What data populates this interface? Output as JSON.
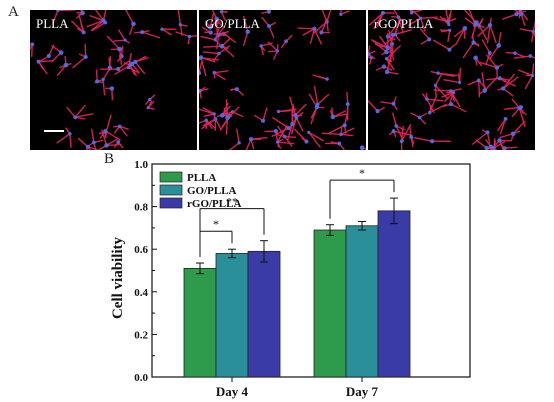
{
  "panel_a": {
    "letter": "A",
    "images": [
      {
        "label": "PLLA",
        "density": 0.55
      },
      {
        "label": "GO/PLLA",
        "density": 0.75
      },
      {
        "label": "rGO/PLLA",
        "density": 0.95
      }
    ]
  },
  "panel_b": {
    "letter": "B"
  },
  "colors": {
    "PLLA": "#2e9a4b",
    "GO/PLLA": "#2b8f9a",
    "rGO/PLLA": "#3b3ba8",
    "cells": "#e8245a",
    "nuclei": "#5a6ae0"
  },
  "chart_data": {
    "type": "bar",
    "categories": [
      "Day 4",
      "Day 7"
    ],
    "series": [
      {
        "name": "PLLA",
        "values": [
          0.51,
          0.69
        ],
        "errors": [
          0.025,
          0.025
        ],
        "color": "#2e9a4b"
      },
      {
        "name": "GO/PLLA",
        "values": [
          0.58,
          0.71
        ],
        "errors": [
          0.02,
          0.02
        ],
        "color": "#2b8f9a"
      },
      {
        "name": "rGO/PLLA",
        "values": [
          0.59,
          0.78
        ],
        "errors": [
          0.05,
          0.06
        ],
        "color": "#3b3ba8"
      }
    ],
    "ylabel": "Cell viability",
    "xlabel": "",
    "ylim": [
      0.0,
      1.0
    ],
    "yticks": [
      "0.0",
      "0.2",
      "0.4",
      "0.6",
      "0.8",
      "1.0"
    ],
    "legend_position": "top-left",
    "grid": false,
    "significance": [
      {
        "category": "Day 4",
        "from": "PLLA",
        "to": "GO/PLLA",
        "label": "*"
      },
      {
        "category": "Day 4",
        "from": "PLLA",
        "to": "rGO/PLLA",
        "label": "**"
      },
      {
        "category": "Day 7",
        "from": "PLLA",
        "to": "rGO/PLLA",
        "label": "*"
      }
    ]
  }
}
